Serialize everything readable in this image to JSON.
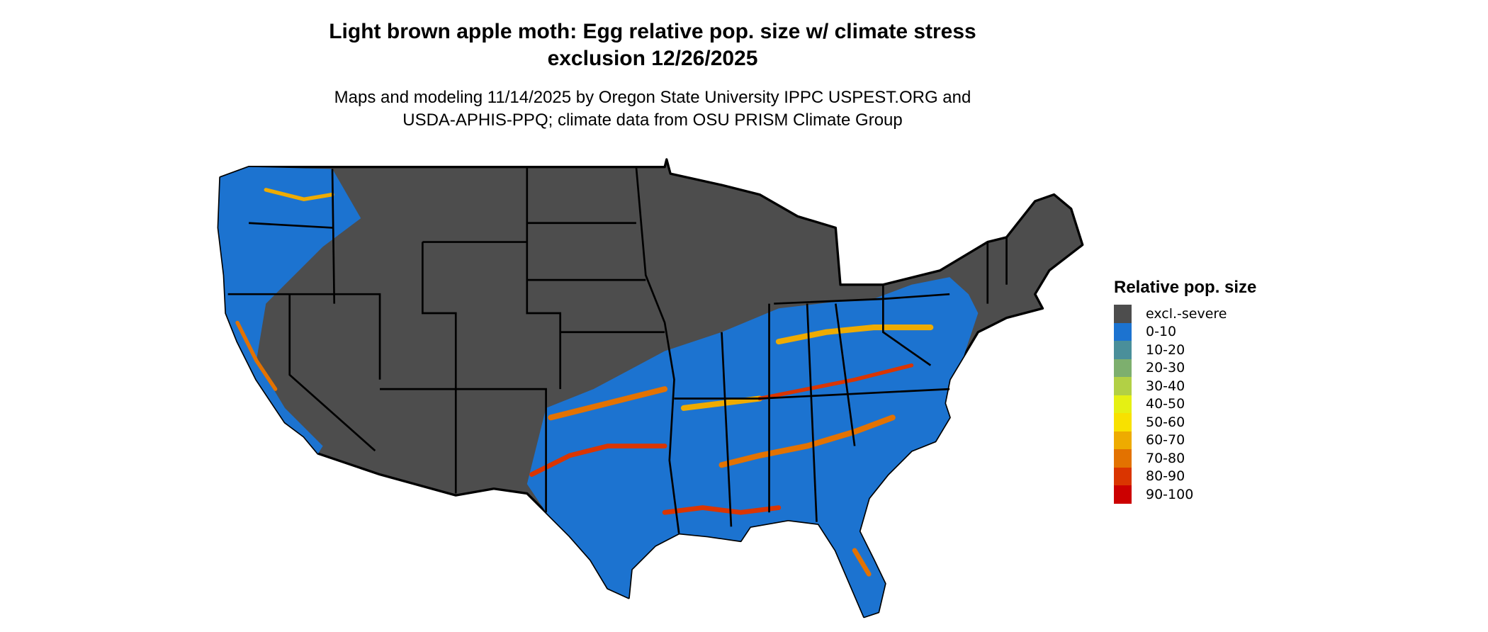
{
  "title": {
    "line1": "Light brown apple moth: Egg relative pop. size w/ climate stress",
    "line2": "exclusion 12/26/2025"
  },
  "subtitle": {
    "line1": "Maps and modeling 11/14/2025 by Oregon State University IPPC USPEST.ORG and",
    "line2": "USDA-APHIS-PPQ; climate data from OSU PRISM Climate Group"
  },
  "legend": {
    "title": "Relative pop. size",
    "items": [
      {
        "label": "excl.-severe",
        "color": "#4d4d4d"
      },
      {
        "label": "0-10",
        "color": "#1c73d0"
      },
      {
        "label": "10-20",
        "color": "#4a8f9a"
      },
      {
        "label": "20-30",
        "color": "#7daf6e"
      },
      {
        "label": "30-40",
        "color": "#b2d045"
      },
      {
        "label": "40-50",
        "color": "#e5f013"
      },
      {
        "label": "50-60",
        "color": "#f8e100"
      },
      {
        "label": "60-70",
        "color": "#eeab00"
      },
      {
        "label": "70-80",
        "color": "#e37200"
      },
      {
        "label": "80-90",
        "color": "#da3500"
      },
      {
        "label": "90-100",
        "color": "#cc0000"
      }
    ]
  }
}
